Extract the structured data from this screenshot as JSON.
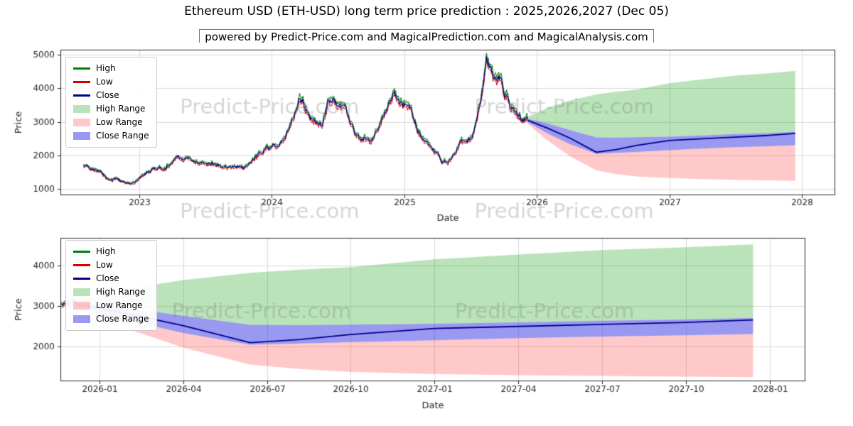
{
  "page": {
    "title": "Ethereum USD (ETH-USD) long term price prediction : 2025,2026,2027 (Dec 05)",
    "subtitle": "powered by Predict-Price.com and MagicalPrediction.com and MagicalAnalysis.com",
    "watermark": "Predict-Price.com"
  },
  "legend": [
    "High",
    "Low",
    "Close",
    "High Range",
    "Low Range",
    "Close Range"
  ],
  "colors": {
    "high": "#007f00",
    "low": "#d40000",
    "close": "#00008b",
    "high_range": "rgba(0,150,0,0.27)",
    "low_range": "rgba(255,40,40,0.25)",
    "close_range": "rgba(70,70,230,0.55)",
    "grid": "#d9d9d9",
    "axis": "#262626",
    "watermark": "rgba(128,128,128,0.32)"
  },
  "chart_data": [
    {
      "type": "line",
      "title": "",
      "xlabel": "Date",
      "ylabel": "Price",
      "xlim": [
        2022.405,
        2028.252
      ],
      "ylim": [
        820,
        5150
      ],
      "xticks": [
        {
          "v": 2023,
          "label": "2023"
        },
        {
          "v": 2024,
          "label": "2024"
        },
        {
          "v": 2025,
          "label": "2025"
        },
        {
          "v": 2026,
          "label": "2026"
        },
        {
          "v": 2027,
          "label": "2027"
        },
        {
          "v": 2028,
          "label": "2028"
        }
      ],
      "yticks": [
        {
          "v": 1000,
          "label": "1000"
        },
        {
          "v": 2000,
          "label": "2000"
        },
        {
          "v": 3000,
          "label": "3000"
        },
        {
          "v": 4000,
          "label": "4000"
        },
        {
          "v": 5000,
          "label": "5000"
        }
      ],
      "history": {
        "x": [
          2022.58,
          2022.7,
          2022.79,
          2022.88,
          2022.96,
          2023.04,
          2023.13,
          2023.21,
          2023.29,
          2023.38,
          2023.46,
          2023.54,
          2023.63,
          2023.71,
          2023.79,
          2023.88,
          2023.96,
          2024.04,
          2024.13,
          2024.21,
          2024.25,
          2024.29,
          2024.38,
          2024.42,
          2024.46,
          2024.54,
          2024.58,
          2024.63,
          2024.67,
          2024.75,
          2024.83,
          2024.92,
          2024.96,
          2025.04,
          2025.13,
          2025.21,
          2025.29,
          2025.33,
          2025.42,
          2025.5,
          2025.54,
          2025.58,
          2025.62,
          2025.67,
          2025.71,
          2025.75,
          2025.83,
          2025.88,
          2025.93
        ],
        "close": [
          1700,
          1500,
          1300,
          1220,
          1200,
          1480,
          1620,
          1700,
          1850,
          1800,
          1750,
          1880,
          1680,
          1630,
          1600,
          1950,
          2250,
          2300,
          2700,
          3900,
          3550,
          3100,
          3000,
          3700,
          3750,
          3400,
          3150,
          2550,
          2400,
          2500,
          3100,
          3850,
          3600,
          3300,
          2700,
          2100,
          1850,
          1800,
          2450,
          2500,
          2900,
          3700,
          4800,
          4400,
          4450,
          4000,
          3350,
          3100,
          3100
        ]
      },
      "forecast": {
        "x": [
          2025.93,
          2026.08,
          2026.25,
          2026.45,
          2026.6,
          2026.75,
          2027.0,
          2027.25,
          2027.5,
          2027.75,
          2027.95
        ],
        "close": [
          3050,
          2820,
          2520,
          2100,
          2180,
          2300,
          2450,
          2500,
          2550,
          2600,
          2660
        ],
        "close_hi": [
          3100,
          2960,
          2760,
          2540,
          2530,
          2545,
          2565,
          2600,
          2640,
          2670,
          2710
        ],
        "close_lo": [
          3000,
          2660,
          2340,
          2050,
          2080,
          2110,
          2160,
          2210,
          2250,
          2280,
          2310
        ],
        "high": [
          3150,
          3420,
          3640,
          3820,
          3900,
          3960,
          4150,
          4270,
          4380,
          4450,
          4520
        ],
        "low": [
          2950,
          2450,
          1980,
          1560,
          1450,
          1380,
          1330,
          1300,
          1280,
          1265,
          1250
        ]
      }
    },
    {
      "type": "line",
      "title": "",
      "xlabel": "Date",
      "ylabel": "Price",
      "xlim": [
        2025.884,
        2028.106
      ],
      "ylim": [
        1150,
        4680
      ],
      "xticks": [
        {
          "v": 2026.0,
          "label": "2026-01"
        },
        {
          "v": 2026.25,
          "label": "2026-04"
        },
        {
          "v": 2026.5,
          "label": "2026-07"
        },
        {
          "v": 2026.75,
          "label": "2026-10"
        },
        {
          "v": 2027.0,
          "label": "2027-01"
        },
        {
          "v": 2027.25,
          "label": "2027-04"
        },
        {
          "v": 2027.5,
          "label": "2027-07"
        },
        {
          "v": 2027.75,
          "label": "2027-10"
        },
        {
          "v": 2028.0,
          "label": "2028-01"
        }
      ],
      "yticks": [
        {
          "v": 2000,
          "label": "2000"
        },
        {
          "v": 3000,
          "label": "3000"
        },
        {
          "v": 4000,
          "label": "4000"
        }
      ]
    }
  ]
}
